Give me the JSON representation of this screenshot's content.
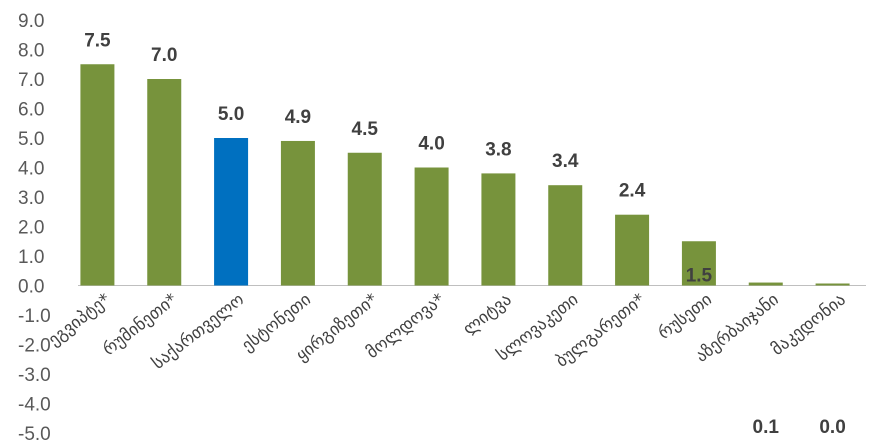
{
  "chart_data": {
    "type": "bar",
    "categories": [
      "ეგვიპტე*",
      "რუმინეთი*",
      "საქართველო",
      "ესტონეთი",
      "ყირგიზეთი*",
      "მოლდოვა*",
      "ლიტვა",
      "სლოვაკეთი",
      "ბულგარეთი*",
      "რუსეთი",
      "აზერბაიჯანი",
      "მაკედონია"
    ],
    "values": [
      7.5,
      7.0,
      5.0,
      4.9,
      4.5,
      4.0,
      3.8,
      3.4,
      2.4,
      1.5,
      0.1,
      0.0
    ],
    "value_labels": [
      "7.5",
      "7.0",
      "5.0",
      "4.9",
      "4.5",
      "4.0",
      "3.8",
      "3.4",
      "2.4",
      "1.5",
      "0.1",
      "0.0"
    ],
    "highlight_category": "საქართველო",
    "colors": {
      "default": "#77933C",
      "highlight": "#0070C0"
    },
    "ylim": [
      -5.0,
      9.0
    ],
    "yticks": [
      "-5.0",
      "-4.0",
      "-3.0",
      "-2.0",
      "-1.0",
      "0.0",
      "1.0",
      "2.0",
      "3.0",
      "4.0",
      "5.0",
      "6.0",
      "7.0",
      "8.0",
      "9.0"
    ],
    "title": "",
    "xlabel": "",
    "ylabel": "",
    "grid": false
  }
}
